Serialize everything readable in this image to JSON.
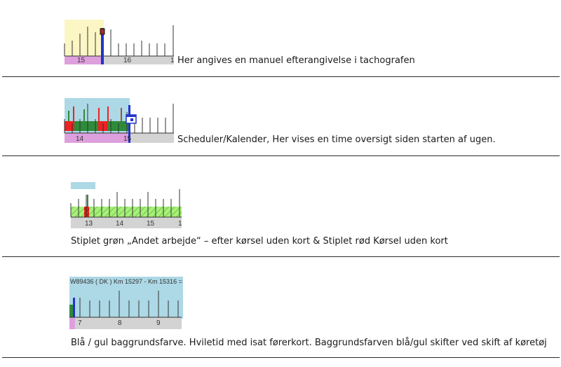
{
  "sections": [
    {
      "caption": "Her angives en manuel efterangivelse i tachografen",
      "ruler_labels": [
        "15",
        "16",
        "1"
      ]
    },
    {
      "caption": "Scheduler/Kalender, Her vises en time oversigt siden starten af ugen.",
      "ruler_labels": [
        "14",
        "15"
      ]
    },
    {
      "caption": "Stiplet grøn „Andet arbejde“ – efter kørsel uden kort  & Stiplet rød Kørsel uden kort",
      "ruler_labels": [
        "13",
        "14",
        "15",
        "1"
      ]
    },
    {
      "caption": "Blå / gul baggrundsfarve. Hviletid med isat førerkort.  Baggrundsfarven blå/gul skifter ved skift af køretøj",
      "vehicle_label": "W89436 ( DK ) Km 15297 - Km 15316 =",
      "ruler_labels": [
        "7",
        "8",
        "9"
      ]
    }
  ],
  "colors": {
    "yellow_bg": "#fbf6c4",
    "blue_bg": "#add8e6",
    "pink": "#dda0dd",
    "grey": "#d3d3d3",
    "green": "#2e8b3a",
    "red": "#ee2222",
    "light_green": "#a8f07a",
    "nav_blue": "#2233cc"
  }
}
